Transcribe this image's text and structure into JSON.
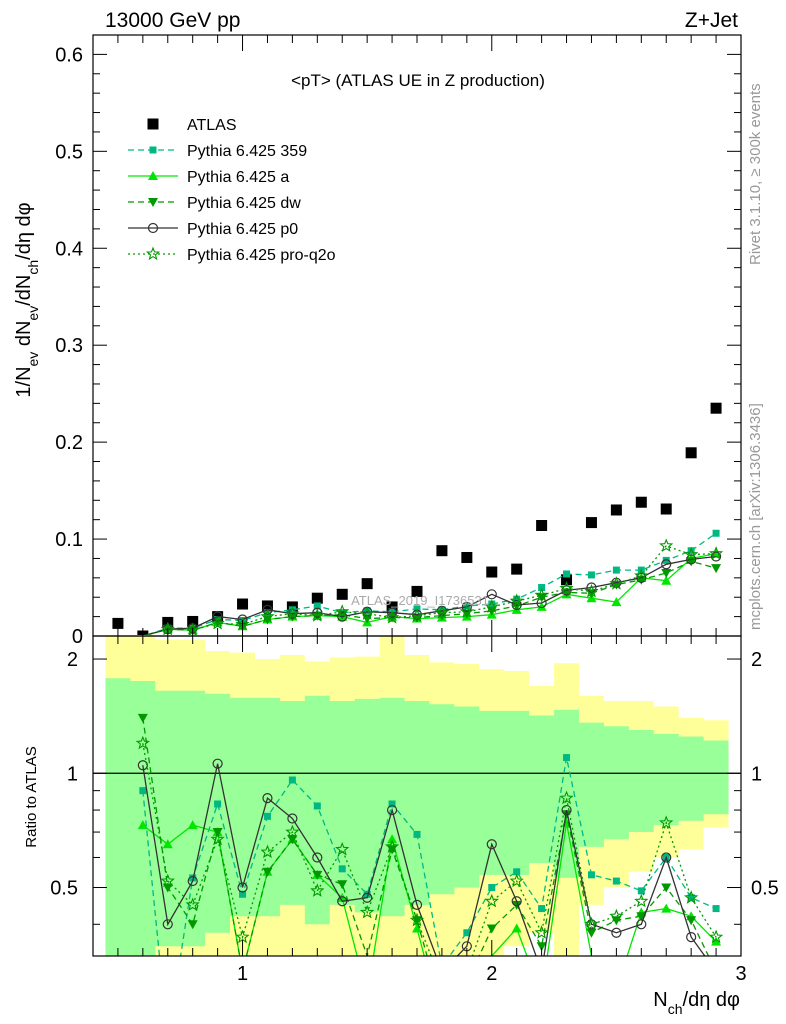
{
  "header": {
    "left": "13000 GeV pp",
    "right": "Z+Jet"
  },
  "side_labels": {
    "rivet": "Rivet 3.1.10, ≥ 300k events",
    "mcplots": "mcplots.cern.ch [arXiv:1306.3436]"
  },
  "watermark": "ATLAS_2019_I1736531",
  "chart_data": [
    {
      "type": "scatter",
      "title": "<pT> (ATLAS UE in Z production)",
      "xlabel": "N_ch/dη dφ",
      "ylabel": "1/N_ev dN_ev/dN_ch/dη dφ",
      "xlim": [
        0.4,
        3.0
      ],
      "ylim": [
        0,
        0.62
      ],
      "yticks": [
        0,
        0.1,
        0.2,
        0.3,
        0.4,
        0.5,
        0.6
      ],
      "ytick_labels": [
        "0",
        "0.1",
        "0.2",
        "0.3",
        "0.4",
        "0.5",
        "0.6"
      ],
      "legend_position": "top-left",
      "x": [
        0.5,
        0.6,
        0.7,
        0.8,
        0.9,
        1.0,
        1.1,
        1.2,
        1.3,
        1.4,
        1.5,
        1.6,
        1.7,
        1.8,
        1.9,
        2.0,
        2.1,
        2.2,
        2.3,
        2.4,
        2.5,
        2.6,
        2.7,
        2.8,
        2.9
      ],
      "series": [
        {
          "name": "ATLAS",
          "color": "#000000",
          "marker": "square",
          "line": "none",
          "values": [
            0.013,
            0.0,
            0.014,
            0.015,
            0.02,
            0.033,
            0.031,
            0.03,
            0.039,
            0.043,
            0.054,
            0.03,
            0.046,
            0.088,
            0.081,
            0.066,
            0.069,
            0.114,
            0.058,
            0.117,
            0.13,
            0.138,
            0.131,
            0.189,
            0.235
          ]
        },
        {
          "name": "Pythia 6.425 359",
          "color": "#00b982",
          "marker": "square-small",
          "line": "dashed",
          "values": [
            0.0,
            0.0,
            0.008,
            0.008,
            0.017,
            0.016,
            0.024,
            0.027,
            0.031,
            0.024,
            0.026,
            0.025,
            0.028,
            0.027,
            0.031,
            0.033,
            0.038,
            0.05,
            0.064,
            0.063,
            0.068,
            0.068,
            0.078,
            0.088,
            0.106
          ]
        },
        {
          "name": "Pythia 6.425 a",
          "color": "#00e600",
          "marker": "triangle-up",
          "line": "solid",
          "values": [
            0.0,
            0.0,
            0.007,
            0.006,
            0.014,
            0.01,
            0.017,
            0.02,
            0.021,
            0.02,
            0.014,
            0.02,
            0.018,
            0.019,
            0.02,
            0.022,
            0.027,
            0.03,
            0.043,
            0.039,
            0.035,
            0.06,
            0.057,
            0.08,
            0.085
          ]
        },
        {
          "name": "Pythia 6.425 dw",
          "color": "#009900",
          "marker": "triangle-down",
          "line": "dashed",
          "values": [
            0.0,
            0.0,
            0.007,
            0.006,
            0.014,
            0.01,
            0.017,
            0.02,
            0.021,
            0.022,
            0.018,
            0.019,
            0.019,
            0.021,
            0.023,
            0.026,
            0.031,
            0.04,
            0.045,
            0.044,
            0.053,
            0.058,
            0.065,
            0.077,
            0.07
          ]
        },
        {
          "name": "Pythia 6.425 p0",
          "color": "#333333",
          "marker": "circle-open",
          "line": "solid",
          "values": [
            0.0,
            0.0,
            0.007,
            0.008,
            0.02,
            0.017,
            0.027,
            0.023,
            0.024,
            0.02,
            0.025,
            0.024,
            0.022,
            0.026,
            0.03,
            0.043,
            0.032,
            0.034,
            0.047,
            0.05,
            0.055,
            0.06,
            0.074,
            0.079,
            0.082
          ]
        },
        {
          "name": "Pythia 6.425 pro-q2o",
          "color": "#009900",
          "marker": "star-open",
          "line": "dotted",
          "values": [
            0.0,
            0.0,
            0.007,
            0.006,
            0.013,
            0.012,
            0.02,
            0.023,
            0.021,
            0.025,
            0.023,
            0.019,
            0.021,
            0.024,
            0.025,
            0.03,
            0.036,
            0.042,
            0.049,
            0.046,
            0.054,
            0.062,
            0.093,
            0.084,
            0.085
          ]
        }
      ]
    },
    {
      "type": "line",
      "title": "",
      "xlabel": "N_ch/dη dφ",
      "ylabel": "Ratio to ATLAS",
      "xlim": [
        0.4,
        3.0
      ],
      "ylim": [
        0.33,
        2.3
      ],
      "xticks": [
        1,
        2,
        3
      ],
      "xtick_labels": [
        "1",
        "2",
        "3"
      ],
      "yticks": [
        0.5,
        1,
        2
      ],
      "ytick_labels": [
        "0.5",
        "1",
        "2"
      ],
      "reference_line": 1,
      "bands": {
        "x_edges": [
          0.45,
          0.55,
          0.65,
          0.75,
          0.85,
          0.95,
          1.05,
          1.15,
          1.25,
          1.35,
          1.45,
          1.55,
          1.65,
          1.75,
          1.85,
          1.95,
          2.05,
          2.15,
          2.25,
          2.35,
          2.45,
          2.55,
          2.65,
          2.75,
          2.85,
          2.95
        ],
        "green_upper": [
          1.78,
          1.75,
          1.65,
          1.65,
          1.62,
          1.58,
          1.58,
          1.55,
          1.6,
          1.55,
          1.57,
          1.58,
          1.55,
          1.52,
          1.5,
          1.46,
          1.46,
          1.42,
          1.47,
          1.36,
          1.33,
          1.3,
          1.27,
          1.25,
          1.22
        ],
        "green_lower": [
          0.22,
          0.25,
          0.35,
          0.35,
          0.38,
          0.42,
          0.42,
          0.45,
          0.4,
          0.45,
          0.43,
          0.42,
          0.45,
          0.48,
          0.5,
          0.54,
          0.54,
          0.58,
          0.53,
          0.64,
          0.67,
          0.7,
          0.73,
          0.75,
          0.78
        ],
        "yellow_upper": [
          2.6,
          2.5,
          2.25,
          2.25,
          2.1,
          2.08,
          2.0,
          2.05,
          1.97,
          2.02,
          2.03,
          2.55,
          2.05,
          1.96,
          1.94,
          1.88,
          1.86,
          1.7,
          1.95,
          1.6,
          1.55,
          1.55,
          1.5,
          1.4,
          1.38
        ],
        "yellow_lower": [
          0.0,
          0.0,
          0.0,
          0.0,
          0.0,
          0.0,
          0.0,
          0.0,
          0.0,
          0.0,
          0.0,
          0.0,
          0.0,
          0.25,
          0.26,
          0.3,
          0.35,
          0.38,
          0.3,
          0.45,
          0.5,
          0.55,
          0.6,
          0.63,
          0.72
        ],
        "green_color": "#99ff99",
        "yellow_color": "#ffff99"
      },
      "x": [
        0.6,
        0.7,
        0.8,
        0.9,
        1.0,
        1.1,
        1.2,
        1.3,
        1.4,
        1.5,
        1.6,
        1.7,
        1.8,
        1.9,
        2.0,
        2.1,
        2.2,
        2.3,
        2.4,
        2.5,
        2.6,
        2.7,
        2.8,
        2.9
      ],
      "series": [
        {
          "name": "Pythia 6.425 359",
          "color": "#00b982",
          "line": "dashed",
          "values": [
            0.9,
            0.0,
            0.53,
            0.83,
            0.48,
            0.77,
            0.96,
            0.82,
            0.56,
            0.48,
            0.83,
            0.69,
            0.31,
            0.38,
            0.5,
            0.55,
            0.44,
            1.1,
            0.54,
            0.52,
            0.49,
            0.6,
            0.47,
            0.44
          ]
        },
        {
          "name": "Pythia 6.425 a",
          "color": "#00e600",
          "line": "solid",
          "values": [
            0.73,
            0.65,
            0.73,
            0.7,
            0.3,
            0.55,
            0.67,
            0.54,
            0.47,
            0.26,
            0.67,
            0.39,
            0.22,
            0.25,
            0.33,
            0.39,
            0.26,
            0.74,
            0.33,
            0.27,
            0.43,
            0.44,
            0.42,
            0.36
          ]
        },
        {
          "name": "Pythia 6.425 dw",
          "color": "#009900",
          "line": "dashed",
          "values": [
            1.4,
            0.5,
            0.4,
            0.7,
            0.3,
            0.55,
            0.67,
            0.54,
            0.51,
            0.33,
            0.63,
            0.41,
            0.24,
            0.28,
            0.39,
            0.45,
            0.35,
            0.78,
            0.38,
            0.41,
            0.42,
            0.5,
            0.41,
            0.3
          ]
        },
        {
          "name": "Pythia 6.425 p0",
          "color": "#333333",
          "line": "solid",
          "values": [
            1.05,
            0.4,
            0.52,
            1.06,
            0.5,
            0.86,
            0.76,
            0.6,
            0.46,
            0.47,
            0.8,
            0.45,
            0.3,
            0.35,
            0.65,
            0.46,
            0.3,
            0.8,
            0.4,
            0.38,
            0.4,
            0.6,
            0.37,
            0.3
          ]
        },
        {
          "name": "Pythia 6.425 pro-q2o",
          "color": "#009900",
          "line": "dotted",
          "values": [
            1.2,
            0.52,
            0.45,
            0.67,
            0.37,
            0.62,
            0.7,
            0.49,
            0.63,
            0.43,
            0.64,
            0.41,
            0.28,
            0.3,
            0.46,
            0.52,
            0.38,
            0.86,
            0.4,
            0.42,
            0.46,
            0.74,
            0.47,
            0.37
          ]
        }
      ]
    }
  ]
}
